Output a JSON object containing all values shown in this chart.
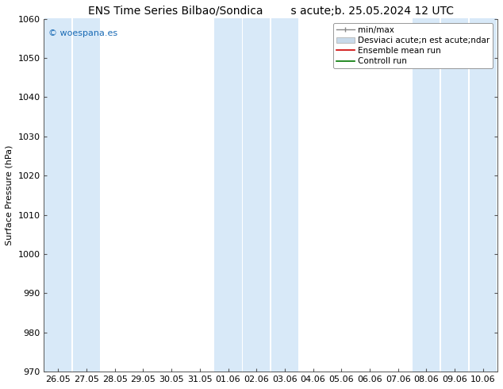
{
  "title": "ENS Time Series Bilbao/Sondica        s acute;b. 25.05.2024 12 UTC",
  "ylabel": "Surface Pressure (hPa)",
  "xlabel": "",
  "ylim": [
    970,
    1060
  ],
  "yticks": [
    970,
    980,
    990,
    1000,
    1010,
    1020,
    1030,
    1040,
    1050,
    1060
  ],
  "xtick_labels": [
    "26.05",
    "27.05",
    "28.05",
    "29.05",
    "30.05",
    "31.05",
    "01.06",
    "02.06",
    "03.06",
    "04.06",
    "05.06",
    "06.06",
    "07.06",
    "08.06",
    "09.06",
    "10.06"
  ],
  "background_color": "#ffffff",
  "plot_bg_color": "#ffffff",
  "shade_color": "#d8e9f8",
  "shade_columns_idx": [
    0,
    1,
    6,
    7,
    8,
    13,
    14,
    15
  ],
  "watermark_text": "© woespana.es",
  "watermark_color": "#1a6bb5",
  "legend_labels": [
    "min/max",
    "Desviaci acute;n est acute;ndar",
    "Ensemble mean run",
    "Controll run"
  ],
  "legend_colors": [
    "#aaaaaa",
    "#c8daea",
    "#cc0000",
    "#007700"
  ],
  "title_fontsize": 10,
  "axis_label_fontsize": 8,
  "tick_fontsize": 8,
  "legend_fontsize": 7.5,
  "fig_width": 6.34,
  "fig_height": 4.9,
  "dpi": 100
}
